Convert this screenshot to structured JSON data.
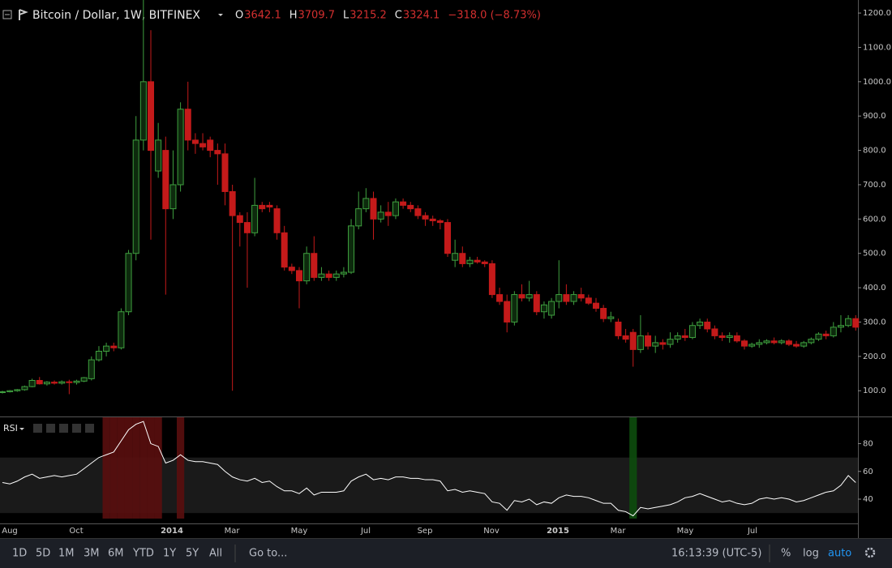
{
  "header": {
    "title": "Bitcoin / Dollar, 1W, BITFINEX",
    "ohlc": [
      {
        "key": "O",
        "value": "3642.1"
      },
      {
        "key": "H",
        "value": "3709.7"
      },
      {
        "key": "L",
        "value": "3215.2"
      },
      {
        "key": "C",
        "value": "3324.1"
      }
    ],
    "change": "−318.0 (−8.73%)"
  },
  "chart_data": [
    {
      "type": "candlestick",
      "up_color": "#3f9f3f",
      "down_color": "#c41a1a",
      "ylim": [
        25,
        1238
      ],
      "yticks": [
        {
          "value": 100,
          "label": "100.0"
        },
        {
          "value": 200,
          "label": "200.0"
        },
        {
          "value": 300,
          "label": "300.0"
        },
        {
          "value": 400,
          "label": "400.0"
        },
        {
          "value": 500,
          "label": "500.0"
        },
        {
          "value": 600,
          "label": "600.0"
        },
        {
          "value": 700,
          "label": "700.0"
        },
        {
          "value": 800,
          "label": "800.0"
        },
        {
          "value": 900,
          "label": "900.0"
        },
        {
          "value": 1000,
          "label": "1000.0"
        },
        {
          "value": 1100,
          "label": "1100.0"
        },
        {
          "value": 1200,
          "label": "1200.0"
        }
      ],
      "ohlc": [
        [
          95,
          100,
          92,
          97
        ],
        [
          97,
          102,
          95,
          100
        ],
        [
          100,
          105,
          97,
          103
        ],
        [
          103,
          115,
          100,
          112
        ],
        [
          112,
          135,
          110,
          130
        ],
        [
          130,
          140,
          118,
          120
        ],
        [
          120,
          128,
          115,
          125
        ],
        [
          125,
          130,
          118,
          122
        ],
        [
          122,
          130,
          118,
          126
        ],
        [
          126,
          132,
          90,
          124
        ],
        [
          124,
          132,
          118,
          128
        ],
        [
          128,
          140,
          125,
          138
        ],
        [
          135,
          200,
          130,
          190
        ],
        [
          190,
          230,
          185,
          215
        ],
        [
          215,
          240,
          200,
          230
        ],
        [
          230,
          240,
          215,
          225
        ],
        [
          225,
          340,
          220,
          330
        ],
        [
          330,
          510,
          320,
          500
        ],
        [
          500,
          900,
          480,
          830
        ],
        [
          830,
          1240,
          800,
          1000
        ],
        [
          1000,
          1150,
          540,
          800
        ],
        [
          740,
          880,
          720,
          830
        ],
        [
          800,
          840,
          380,
          630
        ],
        [
          630,
          800,
          600,
          700
        ],
        [
          700,
          940,
          680,
          920
        ],
        [
          920,
          1000,
          800,
          830
        ],
        [
          830,
          850,
          790,
          820
        ],
        [
          820,
          850,
          800,
          810
        ],
        [
          830,
          840,
          780,
          800
        ],
        [
          800,
          820,
          700,
          790
        ],
        [
          790,
          820,
          640,
          680
        ],
        [
          680,
          700,
          100,
          610
        ],
        [
          610,
          620,
          520,
          590
        ],
        [
          590,
          620,
          400,
          560
        ],
        [
          560,
          720,
          550,
          640
        ],
        [
          640,
          650,
          620,
          630
        ],
        [
          640,
          650,
          620,
          635
        ],
        [
          630,
          640,
          540,
          560
        ],
        [
          560,
          580,
          450,
          460
        ],
        [
          460,
          470,
          440,
          450
        ],
        [
          450,
          460,
          340,
          420
        ],
        [
          420,
          520,
          410,
          500
        ],
        [
          500,
          550,
          420,
          430
        ],
        [
          430,
          460,
          420,
          440
        ],
        [
          440,
          450,
          420,
          430
        ],
        [
          430,
          450,
          420,
          440
        ],
        [
          440,
          460,
          430,
          445
        ],
        [
          445,
          600,
          440,
          580
        ],
        [
          580,
          680,
          570,
          630
        ],
        [
          630,
          690,
          620,
          660
        ],
        [
          660,
          680,
          540,
          600
        ],
        [
          600,
          640,
          590,
          620
        ],
        [
          620,
          650,
          580,
          610
        ],
        [
          610,
          660,
          600,
          650
        ],
        [
          650,
          660,
          630,
          640
        ],
        [
          640,
          650,
          620,
          630
        ],
        [
          630,
          640,
          600,
          610
        ],
        [
          610,
          620,
          580,
          600
        ],
        [
          600,
          610,
          580,
          595
        ],
        [
          595,
          600,
          570,
          590
        ],
        [
          590,
          600,
          490,
          500
        ],
        [
          480,
          540,
          460,
          500
        ],
        [
          500,
          520,
          460,
          470
        ],
        [
          470,
          490,
          460,
          480
        ],
        [
          480,
          490,
          470,
          475
        ],
        [
          475,
          480,
          460,
          470
        ],
        [
          470,
          480,
          370,
          380
        ],
        [
          380,
          400,
          350,
          360
        ],
        [
          360,
          380,
          270,
          300
        ],
        [
          300,
          390,
          290,
          380
        ],
        [
          380,
          410,
          360,
          370
        ],
        [
          370,
          420,
          360,
          380
        ],
        [
          380,
          390,
          320,
          330
        ],
        [
          330,
          360,
          310,
          350
        ],
        [
          320,
          370,
          310,
          360
        ],
        [
          360,
          480,
          340,
          380
        ],
        [
          380,
          410,
          350,
          360
        ],
        [
          360,
          390,
          350,
          380
        ],
        [
          380,
          400,
          360,
          370
        ],
        [
          370,
          380,
          350,
          355
        ],
        [
          355,
          370,
          330,
          340
        ],
        [
          340,
          350,
          300,
          310
        ],
        [
          310,
          330,
          300,
          315
        ],
        [
          300,
          310,
          250,
          260
        ],
        [
          260,
          280,
          240,
          250
        ],
        [
          270,
          280,
          170,
          220
        ],
        [
          220,
          320,
          210,
          260
        ],
        [
          260,
          270,
          220,
          230
        ],
        [
          230,
          260,
          210,
          240
        ],
        [
          240,
          250,
          220,
          235
        ],
        [
          235,
          270,
          225,
          250
        ],
        [
          250,
          270,
          240,
          260
        ],
        [
          260,
          280,
          245,
          255
        ],
        [
          255,
          300,
          250,
          290
        ],
        [
          290,
          310,
          280,
          300
        ],
        [
          300,
          310,
          270,
          280
        ],
        [
          280,
          290,
          250,
          260
        ],
        [
          260,
          270,
          245,
          255
        ],
        [
          255,
          270,
          240,
          260
        ],
        [
          260,
          270,
          240,
          245
        ],
        [
          245,
          250,
          220,
          230
        ],
        [
          230,
          240,
          225,
          235
        ],
        [
          235,
          250,
          225,
          240
        ],
        [
          240,
          250,
          235,
          245
        ],
        [
          245,
          255,
          235,
          240
        ],
        [
          240,
          250,
          235,
          245
        ],
        [
          245,
          250,
          230,
          235
        ],
        [
          235,
          245,
          225,
          230
        ],
        [
          230,
          245,
          225,
          240
        ],
        [
          240,
          255,
          235,
          250
        ],
        [
          250,
          270,
          245,
          265
        ],
        [
          265,
          275,
          250,
          260
        ],
        [
          260,
          300,
          255,
          285
        ],
        [
          285,
          320,
          270,
          290
        ],
        [
          290,
          320,
          285,
          310
        ],
        [
          310,
          320,
          275,
          285
        ]
      ]
    },
    {
      "type": "line",
      "name": "RSI",
      "color": "#ffffff",
      "ylim": [
        26,
        99
      ],
      "yticks": [
        40,
        60,
        80
      ],
      "band": [
        30,
        70
      ],
      "values": [
        52,
        51,
        53,
        56,
        58,
        55,
        56,
        57,
        56,
        57,
        58,
        62,
        66,
        70,
        72,
        74,
        82,
        90,
        94,
        96,
        80,
        78,
        66,
        68,
        72,
        68,
        67,
        67,
        66,
        65,
        60,
        56,
        54,
        53,
        55,
        52,
        53,
        49,
        46,
        46,
        44,
        48,
        43,
        45,
        45,
        45,
        46,
        53,
        56,
        58,
        54,
        55,
        54,
        56,
        56,
        55,
        55,
        54,
        54,
        53,
        46,
        47,
        45,
        46,
        45,
        44,
        38,
        37,
        32,
        39,
        38,
        40,
        36,
        38,
        37,
        41,
        43,
        42,
        42,
        41,
        39,
        37,
        37,
        32,
        31,
        28,
        34,
        33,
        34,
        35,
        36,
        38,
        41,
        42,
        44,
        42,
        40,
        38,
        39,
        37,
        36,
        37,
        40,
        41,
        40,
        41,
        40,
        38,
        39,
        41,
        43,
        45,
        46,
        50,
        57,
        52
      ],
      "x_labels": [
        "Aug",
        "Oct",
        "2014",
        "Mar",
        "May",
        "Jul",
        "Sep",
        "Nov",
        "2015",
        "Mar",
        "May",
        "Jul"
      ]
    }
  ],
  "toolbar": {
    "ranges": [
      "1D",
      "5D",
      "1M",
      "3M",
      "6M",
      "YTD",
      "1Y",
      "5Y",
      "All"
    ],
    "goto": "Go to...",
    "clock": "16:13:39 (UTC-5)",
    "percent": "%",
    "log": "log",
    "auto": "auto"
  }
}
